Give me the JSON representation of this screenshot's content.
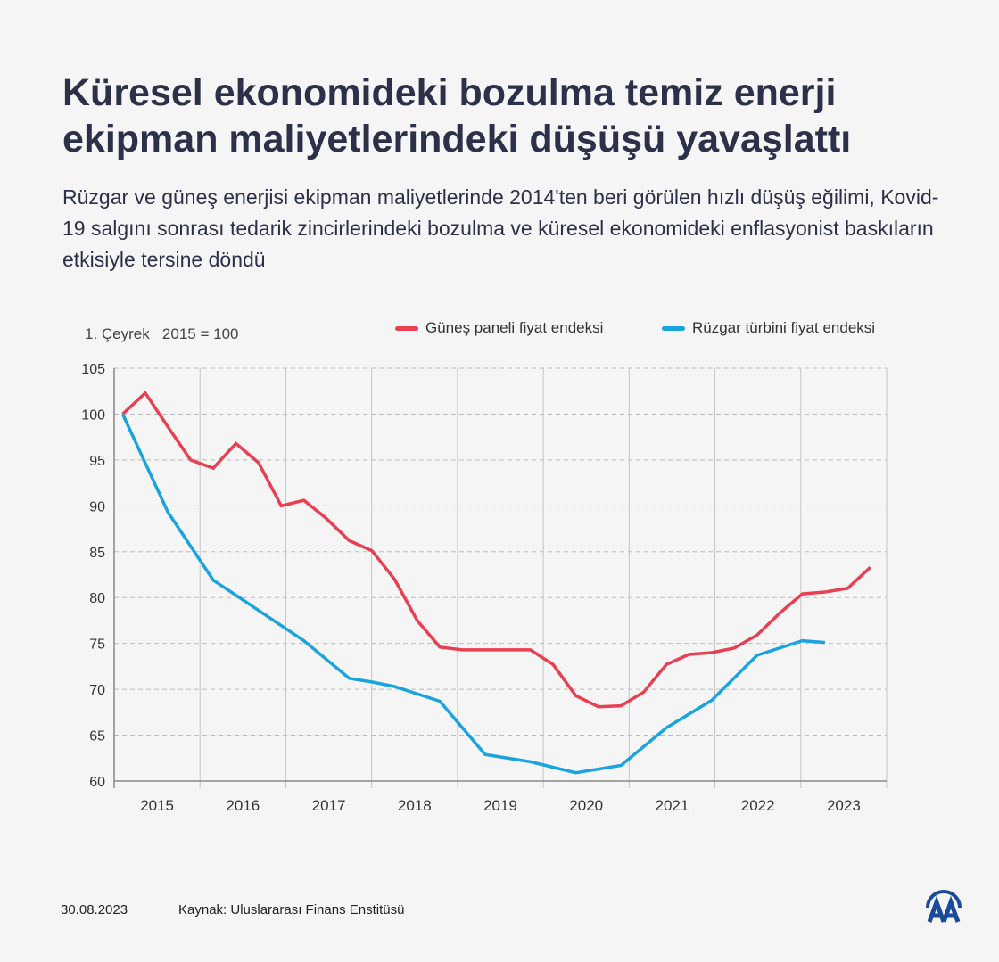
{
  "header": {
    "title": "Küresel ekonomideki bozulma temiz enerji ekipman maliyetlerindeki düşüşü yavaşlattı",
    "subtitle": "Rüzgar ve güneş enerjisi ekipman maliyetlerinde 2014'ten beri görülen hızlı düşüş eğilimi, Kovid-19 salgını sonrası tedarik zincirlerindeki bozulma ve küresel ekonomideki enflasyonist baskıların etkisiyle tersine döndü"
  },
  "chart_data": {
    "type": "line",
    "unit_label": "1. Çeyrek   2015 = 100",
    "x_quarters": [
      "2015Q1",
      "2015Q2",
      "2015Q3",
      "2015Q4",
      "2016Q1",
      "2016Q2",
      "2016Q3",
      "2016Q4",
      "2017Q1",
      "2017Q2",
      "2017Q3",
      "2017Q4",
      "2018Q1",
      "2018Q2",
      "2018Q3",
      "2018Q4",
      "2019Q1",
      "2019Q2",
      "2019Q3",
      "2019Q4",
      "2020Q1",
      "2020Q2",
      "2020Q3",
      "2020Q4",
      "2021Q1",
      "2021Q2",
      "2021Q3",
      "2021Q4",
      "2022Q1",
      "2022Q2",
      "2022Q3",
      "2022Q4",
      "2023Q1",
      "2023Q2"
    ],
    "x_tick_labels": [
      "2015",
      "2016",
      "2017",
      "2018",
      "2019",
      "2020",
      "2021",
      "2022",
      "2023"
    ],
    "y_ticks": [
      60,
      65,
      70,
      75,
      80,
      85,
      90,
      95,
      100,
      105
    ],
    "ylim": [
      60,
      105
    ],
    "grid": "horizontal dashed, vertical year separators",
    "legend_position": "top-right",
    "series": [
      {
        "name": "Güneş paneli fiyat endeksi",
        "color": "#e83f52",
        "values": [
          100,
          102.3,
          98.6,
          95,
          94.1,
          96.8,
          94.7,
          90,
          90.6,
          88.6,
          86.2,
          85.1,
          82,
          77.5,
          74.6,
          74.3,
          74.3,
          74.3,
          74.3,
          72.7,
          69.3,
          68.1,
          68.2,
          69.7,
          72.7,
          73.8,
          74,
          74.5,
          75.9,
          78.3,
          80.4,
          80.6,
          81,
          83.3
        ]
      },
      {
        "name": "Rüzgar türbini fiyat endeksi",
        "color": "#1ba3dd",
        "values": [
          100,
          null,
          89.3,
          null,
          81.9,
          null,
          null,
          null,
          75.3,
          null,
          71.2,
          70.8,
          70.3,
          null,
          68.7,
          null,
          62.9,
          null,
          62.1,
          null,
          60.9,
          null,
          61.7,
          null,
          65.8,
          null,
          68.8,
          null,
          73.7,
          null,
          75.3,
          75.1,
          null,
          null
        ]
      }
    ]
  },
  "footer": {
    "date": "30.08.2023",
    "source": "Kaynak: Uluslararası Finans Enstitüsü",
    "logo_text": "AA"
  }
}
